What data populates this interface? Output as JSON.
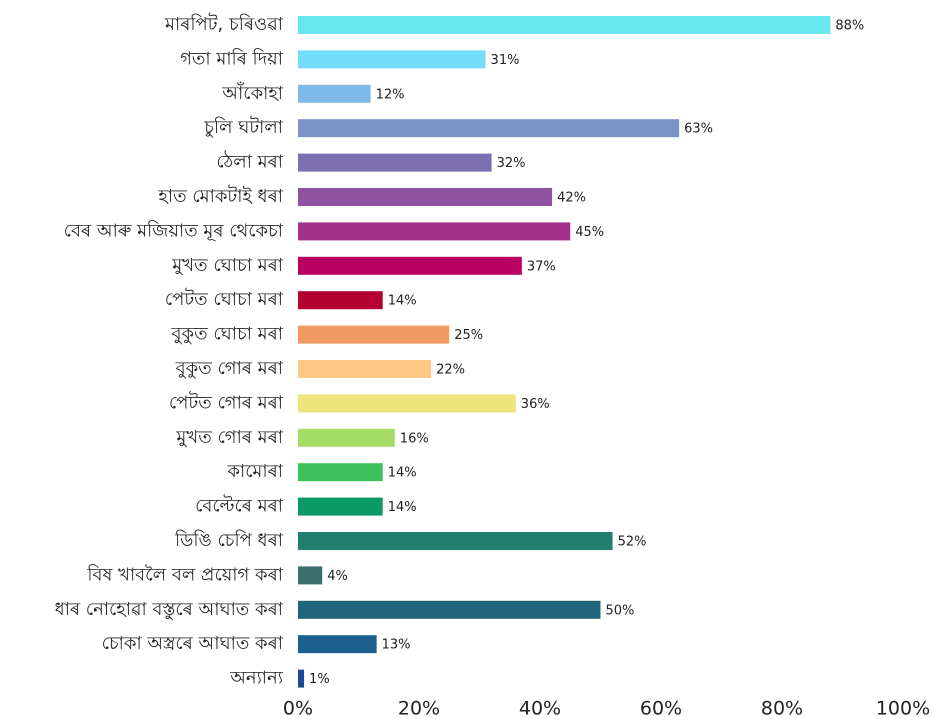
{
  "chart_data": {
    "type": "hbar",
    "categories": [
      "মাৰপিট, চৰিওৱা",
      "গতা মাৰি দিয়া",
      "আঁকোহা",
      "চুলি ঘটালা",
      "ঠেলা মৰা",
      "হাত মোকটাই ধৰা",
      "বেৰ আৰু মজিয়াত মূৰ থেকেচা",
      "মুখত ঘোচা মৰা",
      "পেটত ঘোচা মৰা",
      "বুকুত ঘোচা মৰা",
      "বুকুত গোৰ মৰা",
      "পেটত গোৰ মৰা",
      "মুখত গোৰ মৰা",
      "কামোৰা",
      "বেল্টেৰে মৰা",
      "ডিঙি চেপি ধৰা",
      "বিষ খাবলৈ বল প্ৰয়োগ কৰা",
      "ধাৰ নোহোৱা বস্তুৰে আঘাত কৰা",
      "চোকা অস্ত্ৰৰে আঘাত কৰা",
      "অন্যান্য"
    ],
    "values": [
      88,
      31,
      12,
      63,
      32,
      42,
      45,
      37,
      14,
      25,
      22,
      36,
      16,
      14,
      14,
      52,
      4,
      50,
      13,
      1
    ],
    "value_labels": [
      "88%",
      "31%",
      "12%",
      "63%",
      "32%",
      "42%",
      "45%",
      "37%",
      "14%",
      "25%",
      "22%",
      "36%",
      "16%",
      "14%",
      "14%",
      "52%",
      "4%",
      "50%",
      "13%",
      "1%"
    ],
    "colors": [
      "#67e8ec",
      "#73dcf9",
      "#7fb9e8",
      "#7b93c6",
      "#7b6fb0",
      "#8e52a1",
      "#a3308a",
      "#b80160",
      "#b3002e",
      "#ef9a61",
      "#fdc983",
      "#ede57b",
      "#a5dc66",
      "#3dc15a",
      "#0c9a66",
      "#227f6e",
      "#3b6f6b",
      "#1f6478",
      "#1b5f8c",
      "#1d4c95"
    ],
    "xlim": [
      0,
      100
    ],
    "xticks": [
      {
        "value": 0,
        "label": "0%"
      },
      {
        "value": 20,
        "label": "20%"
      },
      {
        "value": 40,
        "label": "40%"
      },
      {
        "value": 60,
        "label": "60%"
      },
      {
        "value": 80,
        "label": "80%"
      },
      {
        "value": 100,
        "label": "100%"
      }
    ],
    "grid": false
  }
}
